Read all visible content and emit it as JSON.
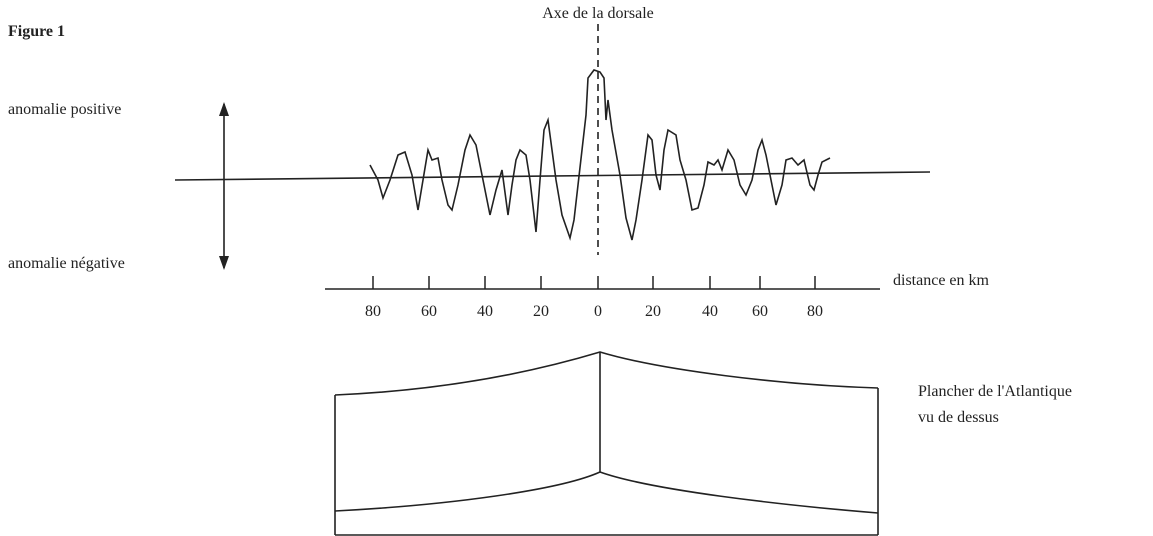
{
  "title": "Figure 1",
  "axis_label": "Axe de la dorsale",
  "positive_label": "anomalie positive",
  "negative_label": "anomalie négative",
  "distance_label": "distance en km",
  "distance_ticks": [
    "80",
    "60",
    "40",
    "20",
    "0",
    "20",
    "40",
    "60",
    "80"
  ],
  "map_caption": [
    "Plancher de l'Atlantique",
    "vu de dessus"
  ]
}
